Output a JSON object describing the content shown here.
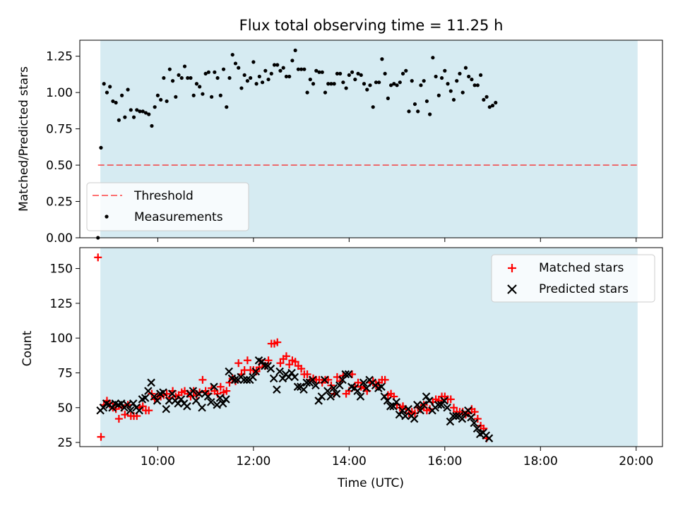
{
  "title": "Flux total observing time = 11.25 h",
  "colors": {
    "shade": "#add8e6",
    "threshold": "#ff0000",
    "measurements": "#000000",
    "matched": "#ff0000",
    "predicted": "#000000"
  },
  "chart_data": [
    {
      "type": "scatter",
      "ylabel": "Matched/Predicted stars",
      "ylim": [
        0,
        1.36
      ],
      "y_ticks": [
        0.0,
        0.25,
        0.5,
        0.75,
        1.0,
        1.25
      ],
      "y_tick_labels": [
        "0.00",
        "0.25",
        "0.50",
        "0.75",
        "1.00",
        "1.25"
      ],
      "x_ticks_hours": [
        10,
        12,
        14,
        16,
        18,
        20
      ],
      "shaded_span_hours": [
        8.8,
        20.03
      ],
      "threshold": {
        "name": "Threshold",
        "value": 0.5,
        "x_range_hours": [
          8.75,
          20.03
        ]
      },
      "legend": {
        "placement": "lower-left",
        "entries": [
          "Threshold",
          "Measurements"
        ]
      },
      "series": [
        {
          "name": "Measurements",
          "marker": "dot",
          "x_start_hours": 8.75,
          "x_step_hours": 0.0625,
          "y": [
            0.0,
            0.62,
            1.06,
            1.0,
            1.04,
            0.94,
            0.93,
            0.81,
            0.98,
            0.83,
            1.02,
            0.88,
            0.83,
            0.88,
            0.87,
            0.87,
            0.86,
            0.85,
            0.77,
            0.9,
            0.98,
            0.95,
            1.1,
            0.94,
            1.16,
            1.08,
            0.97,
            1.12,
            1.1,
            1.18,
            1.1,
            1.1,
            0.98,
            1.06,
            1.04,
            0.99,
            1.13,
            1.14,
            0.97,
            1.14,
            1.1,
            0.98,
            1.16,
            0.9,
            1.1,
            1.26,
            1.2,
            1.17,
            1.03,
            1.12,
            1.08,
            1.1,
            1.21,
            1.06,
            1.11,
            1.07,
            1.15,
            1.09,
            1.13,
            1.19,
            1.19,
            1.15,
            1.17,
            1.11,
            1.11,
            1.22,
            1.29,
            1.16,
            1.16,
            1.16,
            1.0,
            1.09,
            1.06,
            1.15,
            1.14,
            1.14,
            1.0,
            1.06,
            1.06,
            1.06,
            1.13,
            1.13,
            1.07,
            1.03,
            1.12,
            1.14,
            1.09,
            1.13,
            1.12,
            1.06,
            1.02,
            1.05,
            0.9,
            1.07,
            1.07,
            1.23,
            1.13,
            0.96,
            1.05,
            1.06,
            1.05,
            1.07,
            1.13,
            1.15,
            0.87,
            1.08,
            0.92,
            0.87,
            1.05,
            1.08,
            0.94,
            0.85,
            1.24,
            1.11,
            0.98,
            1.1,
            1.15,
            1.06,
            1.01,
            0.95,
            1.08,
            1.13,
            1.0,
            1.17,
            1.11,
            1.09,
            1.05,
            1.05,
            1.12,
            0.95,
            0.97,
            0.9,
            0.91,
            0.93
          ]
        }
      ]
    },
    {
      "type": "scatter",
      "xlabel": "Time (UTC)",
      "ylabel": "Count",
      "ylim": [
        22,
        165
      ],
      "xlim_hours": [
        8.37,
        20.55
      ],
      "y_ticks": [
        25,
        50,
        75,
        100,
        125,
        150
      ],
      "x_ticks_hours": [
        10,
        12,
        14,
        16,
        18,
        20
      ],
      "x_tick_labels": [
        "10:00",
        "12:00",
        "14:00",
        "16:00",
        "18:00",
        "20:00"
      ],
      "shaded_span_hours": [
        8.8,
        20.03
      ],
      "legend": {
        "placement": "upper-right",
        "entries": [
          "Matched stars",
          "Predicted stars"
        ]
      },
      "series": [
        {
          "name": "Matched stars",
          "marker": "plus",
          "x_start_hours": 8.75,
          "x_step_hours": 0.0625,
          "y": [
            158,
            29,
            52,
            55,
            53,
            50,
            49,
            42,
            50,
            45,
            52,
            44,
            44,
            44,
            50,
            51,
            48,
            48,
            60,
            56,
            58,
            58,
            59,
            60,
            57,
            62,
            58,
            59,
            61,
            62,
            60,
            58,
            62,
            59,
            61,
            70,
            62,
            60,
            64,
            62,
            60,
            65,
            61,
            62,
            68,
            71,
            69,
            82,
            74,
            77,
            84,
            77,
            77,
            76,
            79,
            82,
            80,
            84,
            96,
            96,
            97,
            82,
            85,
            87,
            81,
            84,
            83,
            80,
            78,
            74,
            74,
            70,
            71,
            70,
            70,
            68,
            70,
            70,
            66,
            60,
            72,
            69,
            73,
            60,
            62,
            74,
            65,
            68,
            65,
            64,
            62,
            68,
            69,
            66,
            68,
            70,
            70,
            59,
            60,
            58,
            52,
            50,
            51,
            49,
            46,
            47,
            46,
            50,
            49,
            52,
            48,
            49,
            54,
            56,
            55,
            58,
            58,
            56,
            56,
            50,
            47,
            47,
            47,
            45,
            46,
            49,
            47,
            42,
            37,
            35,
            28
          ]
        },
        {
          "name": "Predicted stars",
          "marker": "x",
          "x_start_hours": 8.8,
          "x_step_hours": 0.0625,
          "y": [
            48,
            50,
            53,
            52,
            50,
            53,
            52,
            53,
            50,
            52,
            48,
            53,
            50,
            48,
            56,
            57,
            62,
            68,
            58,
            55,
            60,
            61,
            49,
            55,
            60,
            55,
            53,
            56,
            53,
            51,
            60,
            62,
            55,
            60,
            50,
            60,
            58,
            54,
            65,
            52,
            57,
            53,
            56,
            76,
            71,
            70,
            70,
            72,
            70,
            70,
            70,
            72,
            76,
            84,
            83,
            80,
            80,
            78,
            71,
            63,
            76,
            71,
            74,
            72,
            75,
            72,
            65,
            65,
            63,
            68,
            68,
            70,
            66,
            55,
            58,
            70,
            62,
            58,
            64,
            60,
            66,
            70,
            74,
            74,
            65,
            64,
            62,
            58,
            68,
            64,
            70,
            68,
            66,
            64,
            65,
            58,
            55,
            51,
            51,
            54,
            45,
            48,
            44,
            49,
            44,
            42,
            52,
            48,
            52,
            58,
            55,
            48,
            50,
            52,
            52,
            55,
            50,
            40,
            44,
            44,
            44,
            42,
            46,
            48,
            43,
            39,
            35,
            31,
            32,
            30,
            28
          ]
        }
      ]
    }
  ]
}
